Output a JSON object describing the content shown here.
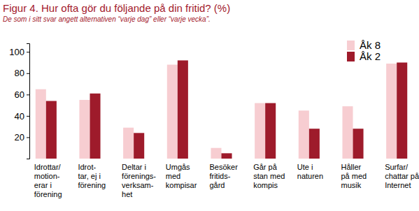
{
  "chart_data": {
    "type": "bar",
    "title": "Figur 4. Hur ofta gör du följande på din fritid? (%)",
    "subtitle": "De som i sitt svar angett alternativen “varje dag” eller “varje vecka”.",
    "categories": [
      "Idrottar/\nmotion-\nerar i\nförening",
      "Idrot-\ntar, ej i\nförening",
      "Deltar i\nförenings-\nverksam-\nhet",
      "Umgås\nmed\nkompisar",
      "Besöker\nfritids-\ngård",
      "Går på\nstan med\nkompis",
      "Ute i\nnaturen",
      "Håller\npå med\nmusik",
      "Surfar/\nchattar på\nInternet"
    ],
    "series": [
      {
        "name": "Åk 8",
        "color": "#f7cdd1",
        "values": [
          65,
          55,
          29,
          88,
          10,
          52,
          45,
          49,
          89
        ]
      },
      {
        "name": "Åk 2",
        "color": "#9e1b2b",
        "values": [
          54,
          61,
          24,
          92,
          5,
          52,
          28,
          28,
          90
        ]
      }
    ],
    "ylim": [
      0,
      108
    ],
    "yticks": [
      20,
      40,
      60,
      80,
      100
    ],
    "grid": false,
    "legend": "top-right"
  }
}
